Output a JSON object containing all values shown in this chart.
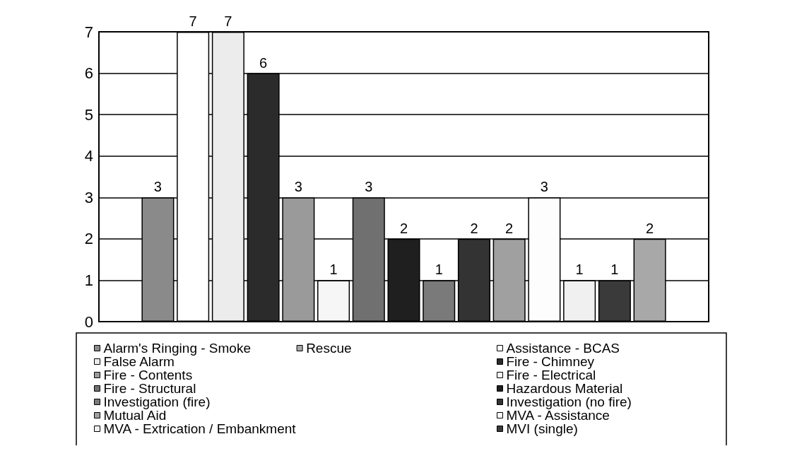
{
  "chart_data": {
    "type": "bar",
    "categories": [
      null
    ],
    "series": [
      {
        "name": "Alarm's Ringing - Smoke",
        "color": "#8a8a8a",
        "values": [
          3
        ]
      },
      {
        "name": "Assistance - BCAS",
        "color": "#ffffff",
        "values": [
          7
        ]
      },
      {
        "name": "False Alarm",
        "color": "#ececec",
        "values": [
          7
        ]
      },
      {
        "name": "Fire - Chimney",
        "color": "#2b2b2b",
        "values": [
          6
        ]
      },
      {
        "name": "Fire - Contents",
        "color": "#9a9a9a",
        "values": [
          3
        ]
      },
      {
        "name": "Fire - Electrical",
        "color": "#f6f6f6",
        "values": [
          1
        ]
      },
      {
        "name": "Fire - Structural",
        "color": "#707070",
        "values": [
          3
        ]
      },
      {
        "name": "Hazardous Material",
        "color": "#1f1f1f",
        "values": [
          2
        ]
      },
      {
        "name": "Investigation (fire)",
        "color": "#7a7a7a",
        "values": [
          1
        ]
      },
      {
        "name": "Investigation (no fire)",
        "color": "#333333",
        "values": [
          2
        ]
      },
      {
        "name": "Mutual Aid",
        "color": "#a0a0a0",
        "values": [
          2
        ]
      },
      {
        "name": "MVA - Assistance",
        "color": "#fdfdfd",
        "values": [
          3
        ]
      },
      {
        "name": "MVA - Extrication / Embankment",
        "color": "#f0f0f0",
        "values": [
          1
        ]
      },
      {
        "name": "MVI (single)",
        "color": "#3a3a3a",
        "values": [
          1
        ]
      },
      {
        "name": "Rescue",
        "color": "#a8a8a8",
        "values": [
          2
        ]
      }
    ],
    "ylim": [
      0,
      7
    ],
    "yticks": [
      0,
      1,
      2,
      3,
      4,
      5,
      6,
      7
    ],
    "grid": "y",
    "legend": "bottom",
    "data_labels": true
  }
}
